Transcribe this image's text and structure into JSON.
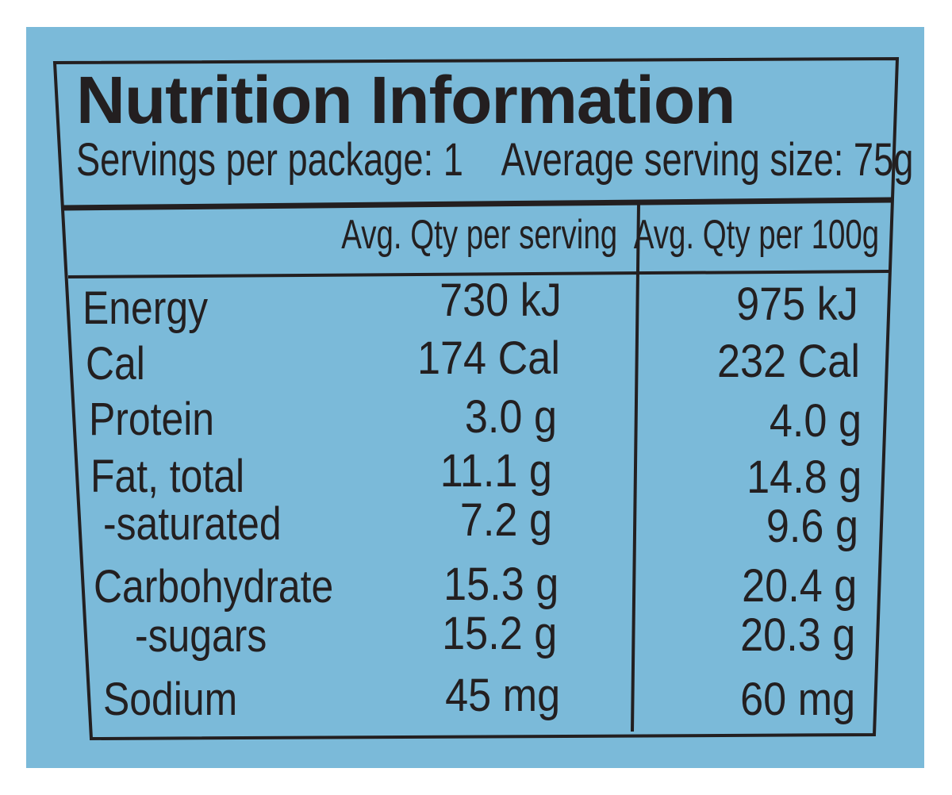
{
  "panel": {
    "title": "Nutrition Information",
    "servings_line": "Servings per package: 1    Average serving size: 75g"
  },
  "table": {
    "columns": [
      "Avg. Qty per serving",
      "Avg. Qty per 100g"
    ],
    "rows": [
      {
        "label": "Energy",
        "per_serving": "730 kJ",
        "per_100g": "975 kJ"
      },
      {
        "label": "Cal",
        "per_serving": "174 Cal",
        "per_100g": "232 Cal"
      },
      {
        "label": "Protein",
        "per_serving": "3.0 g",
        "per_100g": "4.0 g"
      },
      {
        "label": "Fat, total",
        "per_serving": "11.1 g",
        "per_100g": "14.8 g"
      },
      {
        "label": "-saturated",
        "per_serving": "7.2 g",
        "per_100g": "9.6 g"
      },
      {
        "label": "Carbohydrate",
        "per_serving": "15.3 g",
        "per_100g": "20.4 g"
      },
      {
        "label": "-sugars",
        "per_serving": "15.2 g",
        "per_100g": "20.3 g"
      },
      {
        "label": "Sodium",
        "per_serving": "45 mg",
        "per_100g": "60 mg"
      }
    ]
  },
  "colors": {
    "background": "#7bbad9",
    "ink": "#231f20"
  }
}
